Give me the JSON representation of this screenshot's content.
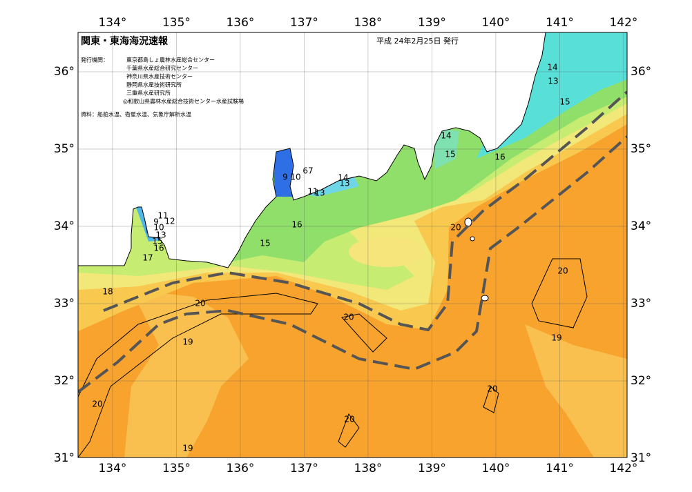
{
  "header": {
    "title": "関東・東海海況速報",
    "date": "平成 24年2月25日 発行"
  },
  "publisher": {
    "label": "発行機関：",
    "names": [
      "東京都島しょ農林水産総合センター",
      "千葉県水産総合研究センター",
      "神奈川県水産技術センター",
      "静岡県水産技術研究所",
      "三重県水産研究所",
      "◎和歌山県農林水産総合技術センター水産試験場"
    ]
  },
  "source": "資料：船舶水温、衛星水温、気象庁解析水温",
  "map": {
    "lon_ticks": [
      {
        "value": 134,
        "label": "134°"
      },
      {
        "value": 135,
        "label": "135°"
      },
      {
        "value": 136,
        "label": "136°"
      },
      {
        "value": 137,
        "label": "137°"
      },
      {
        "value": 138,
        "label": "138°"
      },
      {
        "value": 139,
        "label": "139°"
      },
      {
        "value": 140,
        "label": "140°"
      },
      {
        "value": 141,
        "label": "141°"
      },
      {
        "value": 142,
        "label": "142°"
      }
    ],
    "lat_ticks": [
      {
        "value": 31,
        "label": "31°"
      },
      {
        "value": 32,
        "label": "32°"
      },
      {
        "value": 33,
        "label": "33°"
      },
      {
        "value": 34,
        "label": "34°"
      },
      {
        "value": 35,
        "label": "35°"
      },
      {
        "value": 36,
        "label": "36°"
      }
    ],
    "contour_labels": [
      "14",
      "13",
      "15",
      "14",
      "15",
      "16",
      "9",
      "10",
      "67",
      "14",
      "13",
      "11",
      "13",
      "16",
      "15",
      "9",
      "11",
      "12",
      "10",
      "13",
      "15",
      "16",
      "17",
      "18",
      "20",
      "20",
      "20",
      "20",
      "19",
      "19",
      "20",
      "20",
      "20",
      "19"
    ]
  }
}
